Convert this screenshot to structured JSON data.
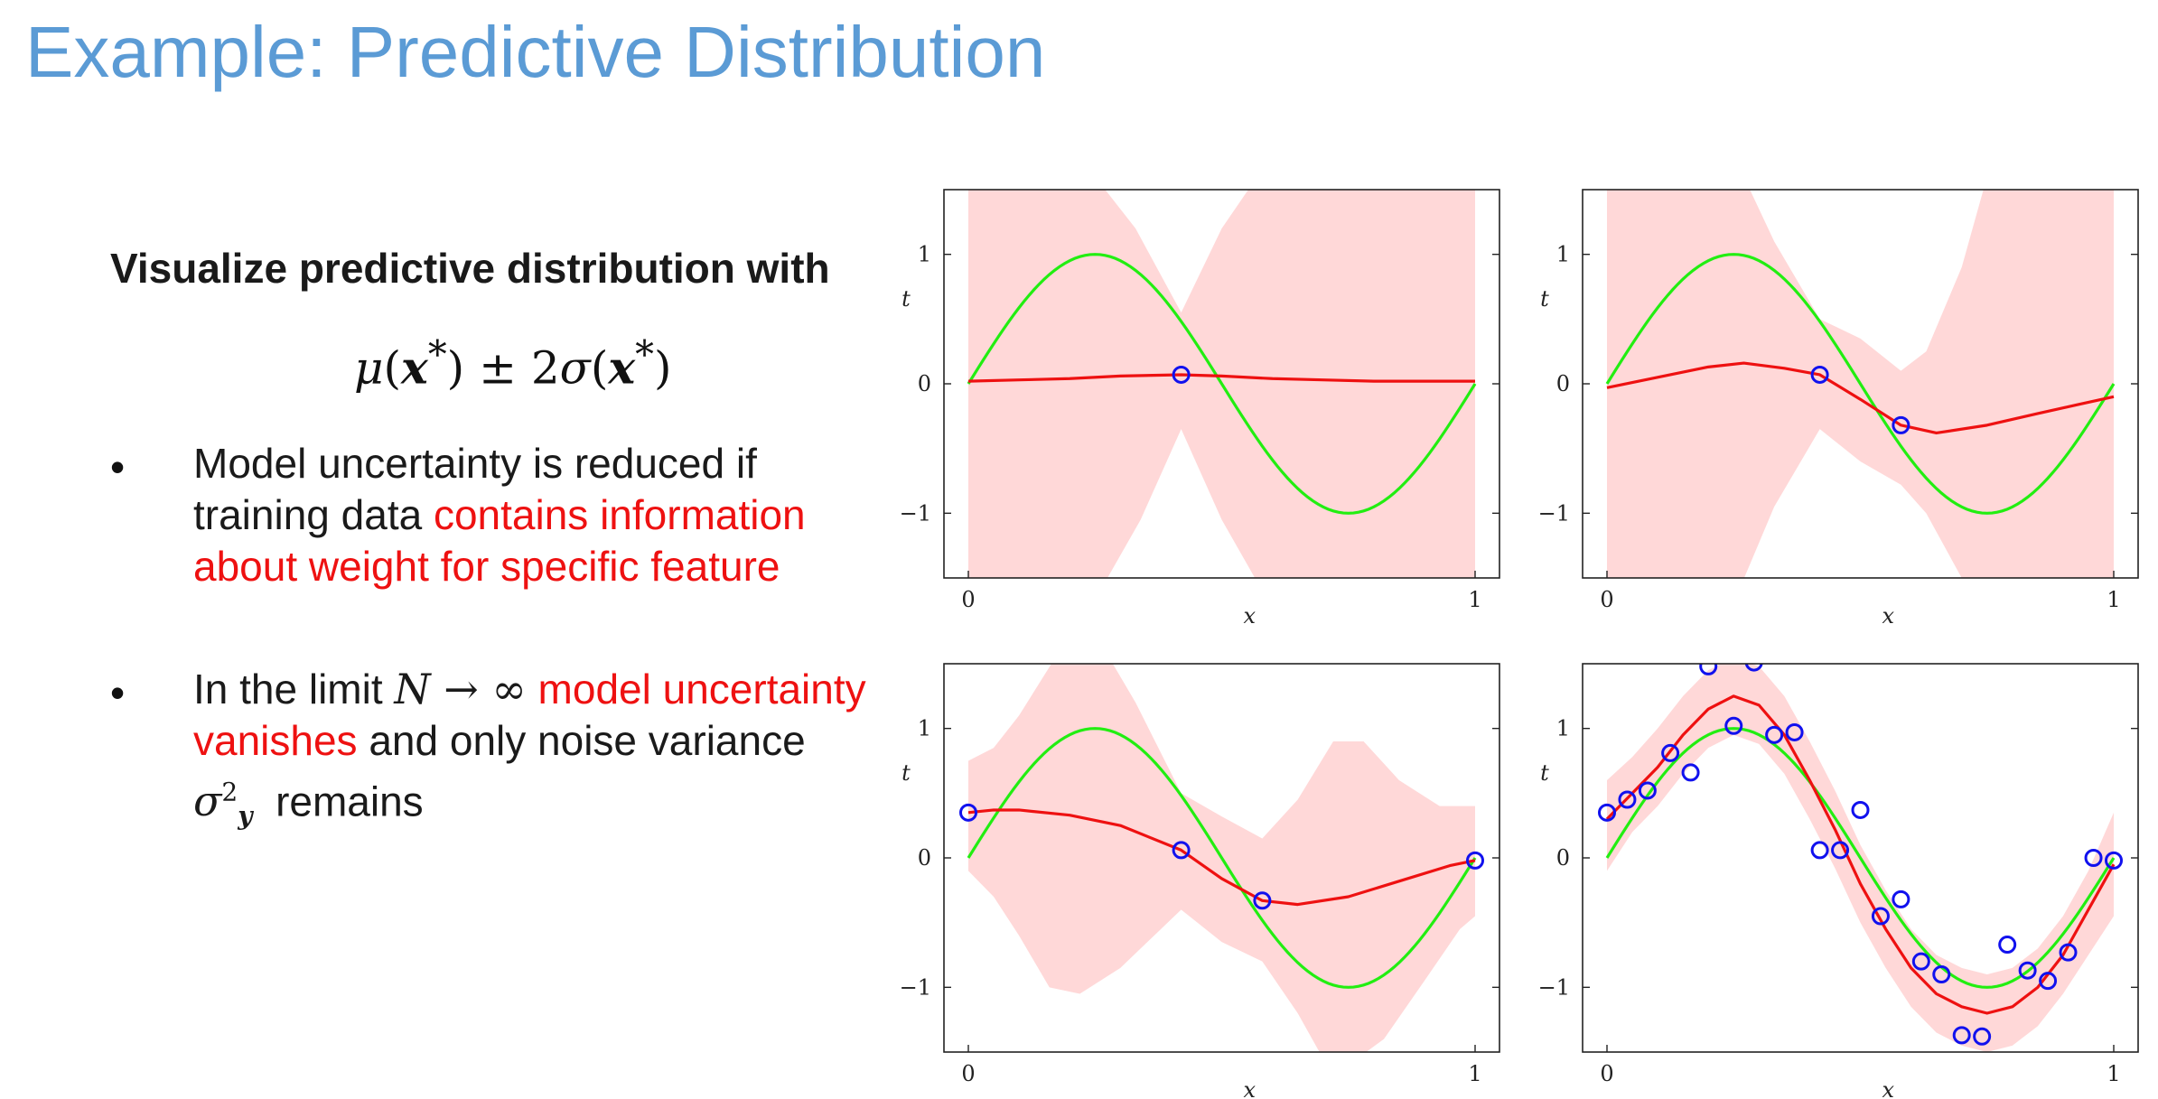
{
  "title": "Example: Predictive Distribution",
  "lead": "Visualize predictive distribution with",
  "formula": {
    "mu": "μ",
    "open1": "(",
    "x1": "x",
    "star1": "*",
    "close1": ")",
    "pm": " ± 2",
    "sigma": "σ",
    "open2": "(",
    "x2": "x",
    "star2": "*",
    "close2": ")"
  },
  "bullets": [
    {
      "marker": "•",
      "part1": "Model uncertainty is reduced if training data ",
      "part2": "contains information about weight for specific feature"
    },
    {
      "marker": "•",
      "part1": "In the limit ",
      "math": "N → ∞",
      "part2": " model uncertainty vanishes",
      "part3": " and only noise variance ",
      "sigma": "σ",
      "sup": "2",
      "sub": "y",
      "part4": "remains"
    }
  ],
  "colors": {
    "title": "#5b9bd5",
    "band": "#ffd8d8",
    "mean": "#ee1111",
    "truth": "#22ee11",
    "points": "#1111ee",
    "emphasis": "#ee1111"
  },
  "chart_data": [
    {
      "type": "line",
      "panel": "top-left",
      "xlabel": "x",
      "ylabel": "t",
      "xlim": [
        0,
        1
      ],
      "ylim": [
        -1.5,
        1.5
      ],
      "xticks": [
        "0",
        "1"
      ],
      "yticks": [
        "1",
        "0",
        "−1"
      ],
      "points": [
        [
          0.42,
          0.07
        ]
      ],
      "mean": [
        [
          0,
          0.02
        ],
        [
          0.1,
          0.03
        ],
        [
          0.2,
          0.04
        ],
        [
          0.3,
          0.06
        ],
        [
          0.42,
          0.07
        ],
        [
          0.5,
          0.06
        ],
        [
          0.6,
          0.04
        ],
        [
          0.7,
          0.03
        ],
        [
          0.8,
          0.02
        ],
        [
          0.9,
          0.02
        ],
        [
          1,
          0.02
        ]
      ],
      "upper": [
        [
          0,
          1.6
        ],
        [
          0.25,
          1.6
        ],
        [
          0.33,
          1.2
        ],
        [
          0.42,
          0.55
        ],
        [
          0.5,
          1.2
        ],
        [
          0.57,
          1.6
        ],
        [
          1,
          1.6
        ]
      ],
      "lower": [
        [
          0,
          -1.6
        ],
        [
          0.26,
          -1.6
        ],
        [
          0.34,
          -1.05
        ],
        [
          0.42,
          -0.35
        ],
        [
          0.5,
          -1.05
        ],
        [
          0.58,
          -1.6
        ],
        [
          1,
          -1.6
        ]
      ]
    },
    {
      "type": "line",
      "panel": "top-right",
      "xlabel": "x",
      "ylabel": "t",
      "xlim": [
        0,
        1
      ],
      "ylim": [
        -1.5,
        1.5
      ],
      "xticks": [
        "0",
        "1"
      ],
      "yticks": [
        "1",
        "0",
        "−1"
      ],
      "points": [
        [
          0.42,
          0.07
        ],
        [
          0.58,
          -0.32
        ]
      ],
      "mean": [
        [
          0,
          -0.03
        ],
        [
          0.1,
          0.05
        ],
        [
          0.2,
          0.13
        ],
        [
          0.27,
          0.16
        ],
        [
          0.35,
          0.12
        ],
        [
          0.42,
          0.07
        ],
        [
          0.5,
          -0.12
        ],
        [
          0.58,
          -0.32
        ],
        [
          0.65,
          -0.38
        ],
        [
          0.75,
          -0.32
        ],
        [
          0.85,
          -0.23
        ],
        [
          0.93,
          -0.16
        ],
        [
          1,
          -0.1
        ]
      ],
      "upper": [
        [
          0,
          1.6
        ],
        [
          0.27,
          1.6
        ],
        [
          0.33,
          1.1
        ],
        [
          0.42,
          0.5
        ],
        [
          0.5,
          0.35
        ],
        [
          0.58,
          0.1
        ],
        [
          0.63,
          0.25
        ],
        [
          0.7,
          0.9
        ],
        [
          0.75,
          1.6
        ],
        [
          1,
          1.6
        ]
      ],
      "lower": [
        [
          0,
          -1.6
        ],
        [
          0.26,
          -1.6
        ],
        [
          0.33,
          -0.95
        ],
        [
          0.42,
          -0.35
        ],
        [
          0.5,
          -0.6
        ],
        [
          0.58,
          -0.78
        ],
        [
          0.63,
          -1.0
        ],
        [
          0.7,
          -1.5
        ],
        [
          0.73,
          -1.6
        ],
        [
          1,
          -1.6
        ]
      ]
    },
    {
      "type": "line",
      "panel": "bottom-left",
      "xlabel": "x",
      "ylabel": "t",
      "xlim": [
        0,
        1
      ],
      "ylim": [
        -1.5,
        1.5
      ],
      "xticks": [
        "0",
        "1"
      ],
      "yticks": [
        "1",
        "0",
        "−1"
      ],
      "points": [
        [
          0,
          0.35
        ],
        [
          0.42,
          0.06
        ],
        [
          0.58,
          -0.33
        ],
        [
          1,
          -0.02
        ]
      ],
      "mean": [
        [
          0,
          0.35
        ],
        [
          0.05,
          0.37
        ],
        [
          0.1,
          0.37
        ],
        [
          0.2,
          0.33
        ],
        [
          0.3,
          0.25
        ],
        [
          0.42,
          0.06
        ],
        [
          0.5,
          -0.16
        ],
        [
          0.58,
          -0.33
        ],
        [
          0.65,
          -0.36
        ],
        [
          0.75,
          -0.3
        ],
        [
          0.85,
          -0.18
        ],
        [
          0.95,
          -0.06
        ],
        [
          1,
          -0.02
        ]
      ],
      "upper": [
        [
          0,
          0.75
        ],
        [
          0.05,
          0.85
        ],
        [
          0.1,
          1.1
        ],
        [
          0.18,
          1.6
        ],
        [
          0.27,
          1.6
        ],
        [
          0.33,
          1.2
        ],
        [
          0.42,
          0.5
        ],
        [
          0.5,
          0.32
        ],
        [
          0.58,
          0.15
        ],
        [
          0.65,
          0.45
        ],
        [
          0.72,
          0.9
        ],
        [
          0.78,
          0.9
        ],
        [
          0.85,
          0.6
        ],
        [
          0.93,
          0.4
        ],
        [
          1,
          0.4
        ]
      ],
      "lower": [
        [
          0,
          -0.1
        ],
        [
          0.05,
          -0.3
        ],
        [
          0.1,
          -0.6
        ],
        [
          0.16,
          -1.0
        ],
        [
          0.22,
          -1.05
        ],
        [
          0.3,
          -0.85
        ],
        [
          0.38,
          -0.55
        ],
        [
          0.42,
          -0.4
        ],
        [
          0.5,
          -0.65
        ],
        [
          0.58,
          -0.8
        ],
        [
          0.65,
          -1.2
        ],
        [
          0.7,
          -1.55
        ],
        [
          0.75,
          -1.6
        ],
        [
          0.82,
          -1.4
        ],
        [
          0.9,
          -0.95
        ],
        [
          0.97,
          -0.55
        ],
        [
          1,
          -0.45
        ]
      ]
    },
    {
      "type": "line",
      "panel": "bottom-right",
      "xlabel": "x",
      "ylabel": "t",
      "xlim": [
        0,
        1
      ],
      "ylim": [
        -1.5,
        1.5
      ],
      "xticks": [
        "0",
        "1"
      ],
      "yticks": [
        "1",
        "0",
        "−1"
      ],
      "points": [
        [
          0,
          0.35
        ],
        [
          0.04,
          0.45
        ],
        [
          0.08,
          0.52
        ],
        [
          0.125,
          0.81
        ],
        [
          0.165,
          0.66
        ],
        [
          0.2,
          1.48
        ],
        [
          0.25,
          1.02
        ],
        [
          0.29,
          1.51
        ],
        [
          0.33,
          0.95
        ],
        [
          0.37,
          0.97
        ],
        [
          0.42,
          0.06
        ],
        [
          0.46,
          0.06
        ],
        [
          0.5,
          0.37
        ],
        [
          0.54,
          -0.45
        ],
        [
          0.58,
          -0.32
        ],
        [
          0.62,
          -0.8
        ],
        [
          0.66,
          -0.9
        ],
        [
          0.7,
          -1.37
        ],
        [
          0.74,
          -1.38
        ],
        [
          0.79,
          -0.67
        ],
        [
          0.83,
          -0.87
        ],
        [
          0.87,
          -0.95
        ],
        [
          0.91,
          -0.73
        ],
        [
          0.96,
          0.0
        ],
        [
          1,
          -0.02
        ]
      ],
      "mean": [
        [
          0,
          0.3
        ],
        [
          0.05,
          0.5
        ],
        [
          0.1,
          0.7
        ],
        [
          0.15,
          0.95
        ],
        [
          0.2,
          1.15
        ],
        [
          0.25,
          1.25
        ],
        [
          0.3,
          1.18
        ],
        [
          0.35,
          0.95
        ],
        [
          0.4,
          0.6
        ],
        [
          0.45,
          0.22
        ],
        [
          0.5,
          -0.2
        ],
        [
          0.55,
          -0.55
        ],
        [
          0.6,
          -0.85
        ],
        [
          0.65,
          -1.05
        ],
        [
          0.7,
          -1.15
        ],
        [
          0.75,
          -1.2
        ],
        [
          0.8,
          -1.15
        ],
        [
          0.85,
          -1.0
        ],
        [
          0.9,
          -0.75
        ],
        [
          0.95,
          -0.4
        ],
        [
          1,
          -0.05
        ]
      ],
      "upper": [
        [
          0,
          0.6
        ],
        [
          0.05,
          0.78
        ],
        [
          0.1,
          1.0
        ],
        [
          0.15,
          1.25
        ],
        [
          0.2,
          1.45
        ],
        [
          0.25,
          1.55
        ],
        [
          0.3,
          1.48
        ],
        [
          0.35,
          1.25
        ],
        [
          0.4,
          0.9
        ],
        [
          0.45,
          0.52
        ],
        [
          0.5,
          0.1
        ],
        [
          0.55,
          -0.25
        ],
        [
          0.6,
          -0.55
        ],
        [
          0.65,
          -0.75
        ],
        [
          0.7,
          -0.85
        ],
        [
          0.75,
          -0.9
        ],
        [
          0.8,
          -0.85
        ],
        [
          0.85,
          -0.7
        ],
        [
          0.9,
          -0.45
        ],
        [
          0.95,
          -0.1
        ],
        [
          1,
          0.35
        ]
      ],
      "lower": [
        [
          0,
          -0.1
        ],
        [
          0.05,
          0.2
        ],
        [
          0.1,
          0.4
        ],
        [
          0.15,
          0.65
        ],
        [
          0.2,
          0.85
        ],
        [
          0.25,
          0.95
        ],
        [
          0.3,
          0.88
        ],
        [
          0.35,
          0.65
        ],
        [
          0.4,
          0.3
        ],
        [
          0.45,
          -0.08
        ],
        [
          0.5,
          -0.5
        ],
        [
          0.55,
          -0.85
        ],
        [
          0.6,
          -1.15
        ],
        [
          0.65,
          -1.35
        ],
        [
          0.7,
          -1.45
        ],
        [
          0.75,
          -1.5
        ],
        [
          0.8,
          -1.45
        ],
        [
          0.85,
          -1.3
        ],
        [
          0.9,
          -1.05
        ],
        [
          0.95,
          -0.75
        ],
        [
          1,
          -0.45
        ]
      ],
      "truth_visible_note": ""
    }
  ]
}
